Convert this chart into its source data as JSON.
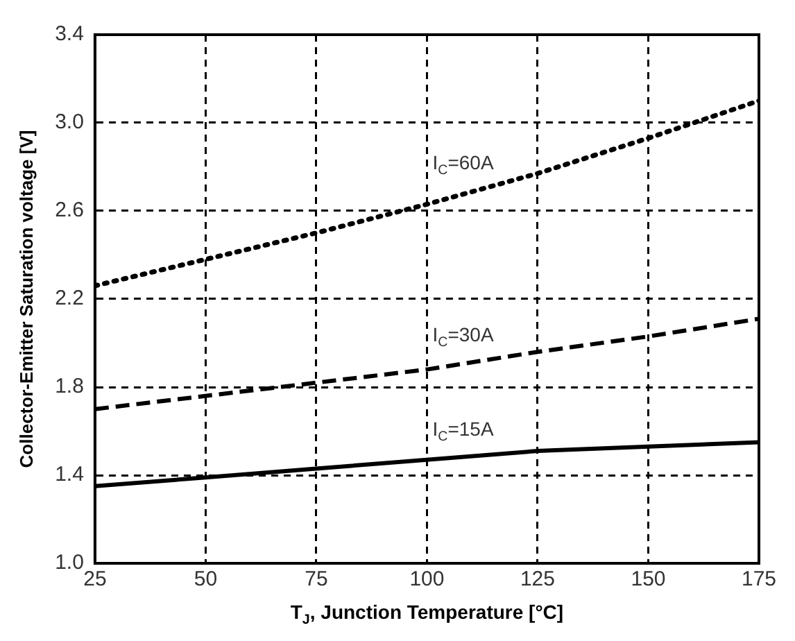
{
  "chart_data": {
    "type": "line",
    "xlabel": "T$_{J}$, Junction Temperature [°C]",
    "ylabel": "Collector-Emitter Saturation voltage [V]",
    "x": [
      25,
      50,
      75,
      100,
      125,
      150,
      175
    ],
    "series": [
      {
        "name": "I$_{C}$=60A",
        "color": "#000000",
        "line_style": "dotted",
        "values": [
          2.26,
          2.38,
          2.5,
          2.63,
          2.77,
          2.93,
          3.1
        ]
      },
      {
        "name": "I$_{C}$=30A",
        "color": "#000000",
        "line_style": "dashed",
        "values": [
          1.7,
          1.76,
          1.82,
          1.88,
          1.96,
          2.03,
          2.11
        ]
      },
      {
        "name": "I$_{C}$=15A",
        "color": "#000000",
        "line_style": "solid",
        "values": [
          1.35,
          1.39,
          1.43,
          1.47,
          1.51,
          1.53,
          1.55
        ]
      }
    ],
    "xlim": [
      25,
      175
    ],
    "xticks": [
      25,
      50,
      75,
      100,
      125,
      150,
      175
    ],
    "ylim": [
      1.0,
      3.4
    ],
    "yticks": [
      {
        "value": 1.0,
        "label": "1.0"
      },
      {
        "value": 1.4,
        "label": "1.4"
      },
      {
        "value": 1.8,
        "label": "1.8"
      },
      {
        "value": 2.2,
        "label": "2.2"
      },
      {
        "value": 2.6,
        "label": "2.6"
      },
      {
        "value": 3.0,
        "label": "3.0"
      },
      {
        "value": 3.4,
        "label": "3.4"
      }
    ],
    "grid": true,
    "legend": false,
    "marker": "none"
  }
}
